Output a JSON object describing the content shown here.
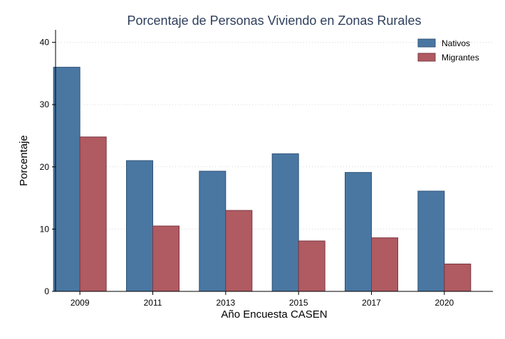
{
  "chart_data": {
    "type": "bar",
    "title": "Porcentaje de Personas Viviendo en Zonas Rurales",
    "xlabel": "Año Encuesta CASEN",
    "ylabel": "Porcentaje",
    "categories": [
      "2009",
      "2011",
      "2013",
      "2015",
      "2017",
      "2020"
    ],
    "series": [
      {
        "name": "Nativos",
        "values": [
          36.0,
          21.0,
          19.3,
          22.1,
          19.1,
          16.1
        ],
        "color": "#4a77a2"
      },
      {
        "name": "Migrantes",
        "values": [
          24.8,
          10.5,
          13.0,
          8.1,
          8.6,
          4.4
        ],
        "color": "#b05a62"
      }
    ],
    "ylim": [
      0,
      42
    ],
    "yticks": [
      0,
      10,
      20,
      30,
      40
    ],
    "grid": true,
    "legend": "top-right"
  }
}
